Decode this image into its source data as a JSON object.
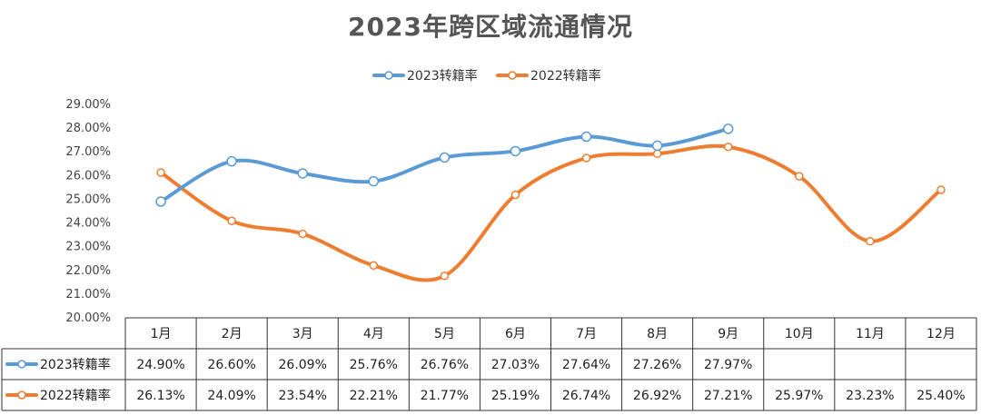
{
  "chart_data": {
    "type": "line",
    "title": "2023年跨区域流通情况",
    "categories": [
      "1月",
      "2月",
      "3月",
      "4月",
      "5月",
      "6月",
      "7月",
      "8月",
      "9月",
      "10月",
      "11月",
      "12月"
    ],
    "ylim": [
      20.0,
      29.0
    ],
    "ytick_labels": [
      "20.00%",
      "21.00%",
      "22.00%",
      "23.00%",
      "24.00%",
      "25.00%",
      "26.00%",
      "27.00%",
      "28.00%",
      "29.00%"
    ],
    "legend_position": "top-center",
    "series": [
      {
        "name": "2023转籍率",
        "color": "#5B9BD5",
        "values": [
          24.9,
          26.6,
          26.09,
          25.76,
          26.76,
          27.03,
          27.64,
          27.26,
          27.97,
          null,
          null,
          null
        ],
        "labels": [
          "24.90%",
          "26.60%",
          "26.09%",
          "25.76%",
          "26.76%",
          "27.03%",
          "27.64%",
          "27.26%",
          "27.97%",
          "",
          "",
          ""
        ]
      },
      {
        "name": "2022转籍率",
        "color": "#ED7D31",
        "values": [
          26.13,
          24.09,
          23.54,
          22.21,
          21.77,
          25.19,
          26.74,
          26.92,
          27.21,
          25.97,
          23.23,
          25.4
        ],
        "labels": [
          "26.13%",
          "24.09%",
          "23.54%",
          "22.21%",
          "21.77%",
          "25.19%",
          "26.74%",
          "26.92%",
          "27.21%",
          "25.97%",
          "23.23%",
          "25.40%"
        ]
      }
    ]
  }
}
